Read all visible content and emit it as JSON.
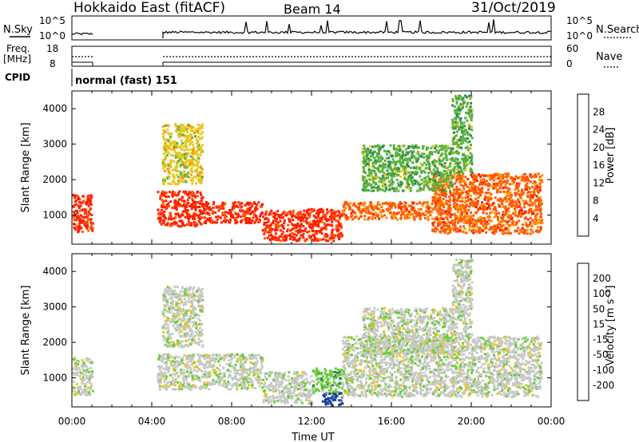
{
  "header": {
    "radar": "Hokkaido East (fitACF)",
    "beam": "Beam 14",
    "date": "31/Oct/2019"
  },
  "strips": {
    "nsky_label": "N.Sky",
    "nsearch_label": "N.Search",
    "freq_label_1": "Freq.",
    "freq_label_2": "[MHz]",
    "nave_label": "Nave",
    "cpid_label": "CPID",
    "cpid_value": "normal (fast) 151",
    "noise_ticks_left": [
      "10^5",
      "10^0"
    ],
    "noise_ticks_right": [
      "10^5",
      "10^0"
    ],
    "freq_ticks": [
      "18",
      "8"
    ],
    "nave_ticks": [
      "60",
      "0"
    ]
  },
  "colors": {
    "power": [
      "#1414e6",
      "#2850a0",
      "#2e8b57",
      "#5ab43c",
      "#e6c81e",
      "#ff9600",
      "#ff5a00",
      "#ff1e00"
    ],
    "velocity": [
      "#1f3c96",
      "#2d73b9",
      "#2e8b57",
      "#6ecb3c",
      "#c8c8c8",
      "#e6c81e",
      "#ff9600",
      "#ff5a00",
      "#ff1e00"
    ]
  },
  "chart_data": [
    {
      "type": "heatmap",
      "name": "power",
      "ylabel": "Slant Range [km]",
      "colorbar_label": "Power [dB]",
      "colorbar_ticks": [
        "28",
        "24",
        "20",
        "16",
        "12",
        "8",
        "4"
      ],
      "ylim": [
        180,
        4500
      ],
      "yticks": [
        "1000",
        "2000",
        "3000",
        "4000"
      ],
      "gap_hours": [
        1.0,
        4.25
      ],
      "bands": [
        {
          "t0": 0.0,
          "t1": 1.0,
          "r0": 550,
          "r1": 1600,
          "level": 7
        },
        {
          "t0": 4.25,
          "t1": 6.5,
          "r0": 700,
          "r1": 1700,
          "level": 7
        },
        {
          "t0": 6.5,
          "t1": 9.5,
          "r0": 800,
          "r1": 1400,
          "level": 7
        },
        {
          "t0": 9.5,
          "t1": 13.5,
          "r0": 300,
          "r1": 1200,
          "level": 7
        },
        {
          "t0": 13.5,
          "t1": 18.0,
          "r0": 900,
          "r1": 1400,
          "level": 6
        },
        {
          "t0": 18.0,
          "t1": 23.5,
          "r0": 500,
          "r1": 2200,
          "level": 6
        },
        {
          "t0": 14.5,
          "t1": 19.0,
          "r0": 1700,
          "r1": 3000,
          "level": 3
        },
        {
          "t0": 19.0,
          "t1": 20.0,
          "r0": 2200,
          "r1": 4400,
          "level": 3
        },
        {
          "t0": 4.5,
          "t1": 6.5,
          "r0": 1900,
          "r1": 3600,
          "level": 4
        }
      ],
      "xlabel": "",
      "xticks": []
    },
    {
      "type": "heatmap",
      "name": "velocity",
      "ylabel": "Slant Range [km]",
      "colorbar_label": "Velocity [m s⁻¹]",
      "colorbar_ticks": [
        "200",
        "100",
        "50",
        "15",
        "-15",
        "-50",
        "-100",
        "-200"
      ],
      "ylim": [
        180,
        4500
      ],
      "yticks": [
        "1000",
        "2000",
        "3000",
        "4000"
      ],
      "gap_hours": [
        1.0,
        4.25
      ],
      "bands": [
        {
          "t0": 0.0,
          "t1": 1.0,
          "r0": 550,
          "r1": 1600,
          "level": 4
        },
        {
          "t0": 4.25,
          "t1": 9.5,
          "r0": 700,
          "r1": 1700,
          "level": 4
        },
        {
          "t0": 9.5,
          "t1": 12.0,
          "r0": 300,
          "r1": 1200,
          "level": 4
        },
        {
          "t0": 12.0,
          "t1": 13.5,
          "r0": 600,
          "r1": 1300,
          "level": 3
        },
        {
          "t0": 12.5,
          "t1": 13.5,
          "r0": 250,
          "r1": 600,
          "level": 0
        },
        {
          "t0": 13.5,
          "t1": 23.5,
          "r0": 500,
          "r1": 2200,
          "level": 4
        },
        {
          "t0": 14.5,
          "t1": 19.0,
          "r0": 1700,
          "r1": 3000,
          "level": 4
        },
        {
          "t0": 19.0,
          "t1": 20.0,
          "r0": 2200,
          "r1": 4400,
          "level": 4
        },
        {
          "t0": 4.5,
          "t1": 6.5,
          "r0": 1900,
          "r1": 3600,
          "level": 4
        }
      ],
      "xlabel": "Time UT",
      "xticks": [
        "00:00",
        "04:00",
        "08:00",
        "12:00",
        "16:00",
        "20:00",
        "00:00"
      ]
    }
  ]
}
